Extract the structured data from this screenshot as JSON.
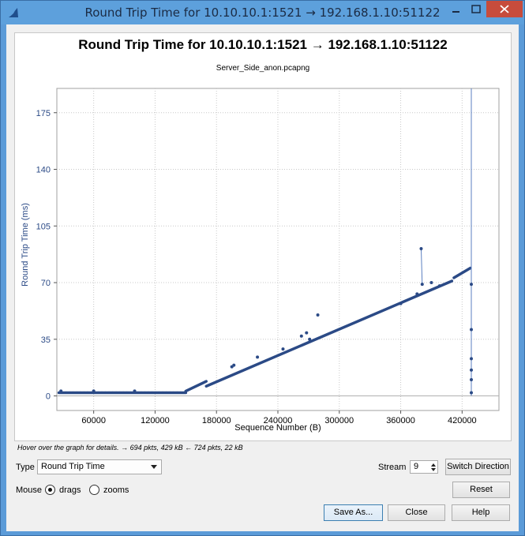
{
  "window": {
    "title": "Round Trip Time for 10.10.10.1:1521 → 192.168.1.10:51122"
  },
  "graph": {
    "title": "Round Trip Time for 10.10.10.1:1521 → 192.168.1.10:51122",
    "subtitle": "Server_Side_anon.pcapng"
  },
  "chart_data": {
    "type": "scatter",
    "title": "Round Trip Time for 10.10.10.1:1521 → 192.168.1.10:51122",
    "subtitle": "Server_Side_anon.pcapng",
    "xlabel": "Sequence Number (B)",
    "ylabel": "Round Trip Time (ms)",
    "xlim": [
      24000,
      456000
    ],
    "ylim": [
      -9,
      190
    ],
    "x_ticks": [
      "60000",
      "120000",
      "180000",
      "240000",
      "300000",
      "360000",
      "420000"
    ],
    "y_ticks": [
      "0",
      "35",
      "70",
      "105",
      "140",
      "175"
    ],
    "grid": "dotted",
    "color": "#2b4a86",
    "series": [
      {
        "segments": [
          {
            "x0": 26000,
            "y0": 2,
            "x1": 150000,
            "y1": 2
          },
          {
            "x0": 150000,
            "y0": 3,
            "x1": 170000,
            "y1": 9
          },
          {
            "x0": 170000,
            "y0": 6,
            "x1": 410000,
            "y1": 71
          },
          {
            "x0": 412000,
            "y0": 73,
            "x1": 428000,
            "y1": 79
          }
        ],
        "spike": {
          "x": 429000,
          "ymin": 0,
          "ymax": 190
        },
        "outliers": [
          {
            "x": 28000,
            "y": 3
          },
          {
            "x": 60000,
            "y": 3
          },
          {
            "x": 100000,
            "y": 3
          },
          {
            "x": 195000,
            "y": 18
          },
          {
            "x": 197000,
            "y": 19
          },
          {
            "x": 220000,
            "y": 24
          },
          {
            "x": 245000,
            "y": 29
          },
          {
            "x": 263000,
            "y": 37
          },
          {
            "x": 268000,
            "y": 39
          },
          {
            "x": 271000,
            "y": 35
          },
          {
            "x": 279000,
            "y": 50
          },
          {
            "x": 360000,
            "y": 57
          },
          {
            "x": 376000,
            "y": 63
          },
          {
            "x": 380000,
            "y": 91
          },
          {
            "x": 381000,
            "y": 69
          },
          {
            "x": 390000,
            "y": 70
          },
          {
            "x": 398000,
            "y": 68
          },
          {
            "x": 429000,
            "y": 69
          },
          {
            "x": 429000,
            "y": 41
          },
          {
            "x": 429000,
            "y": 23
          },
          {
            "x": 429000,
            "y": 16
          },
          {
            "x": 429000,
            "y": 10
          },
          {
            "x": 429000,
            "y": 2
          }
        ]
      }
    ]
  },
  "hover_info": "Hover over the graph for details. → 694 pkts, 429 kB ← 724 pkts, 22 kB",
  "controls": {
    "type_label": "Type",
    "type_value": "Round Trip Time",
    "stream_label": "Stream",
    "stream_value": "9",
    "switch_direction": "Switch Direction",
    "mouse_label": "Mouse",
    "drags_label": "drags",
    "zooms_label": "zooms",
    "reset": "Reset",
    "save_as": "Save As...",
    "close": "Close",
    "help": "Help"
  },
  "icons": {
    "app": "wireshark-fin-icon",
    "minimize": "minimize-icon",
    "maximize": "maximize-icon",
    "close": "close-icon"
  }
}
